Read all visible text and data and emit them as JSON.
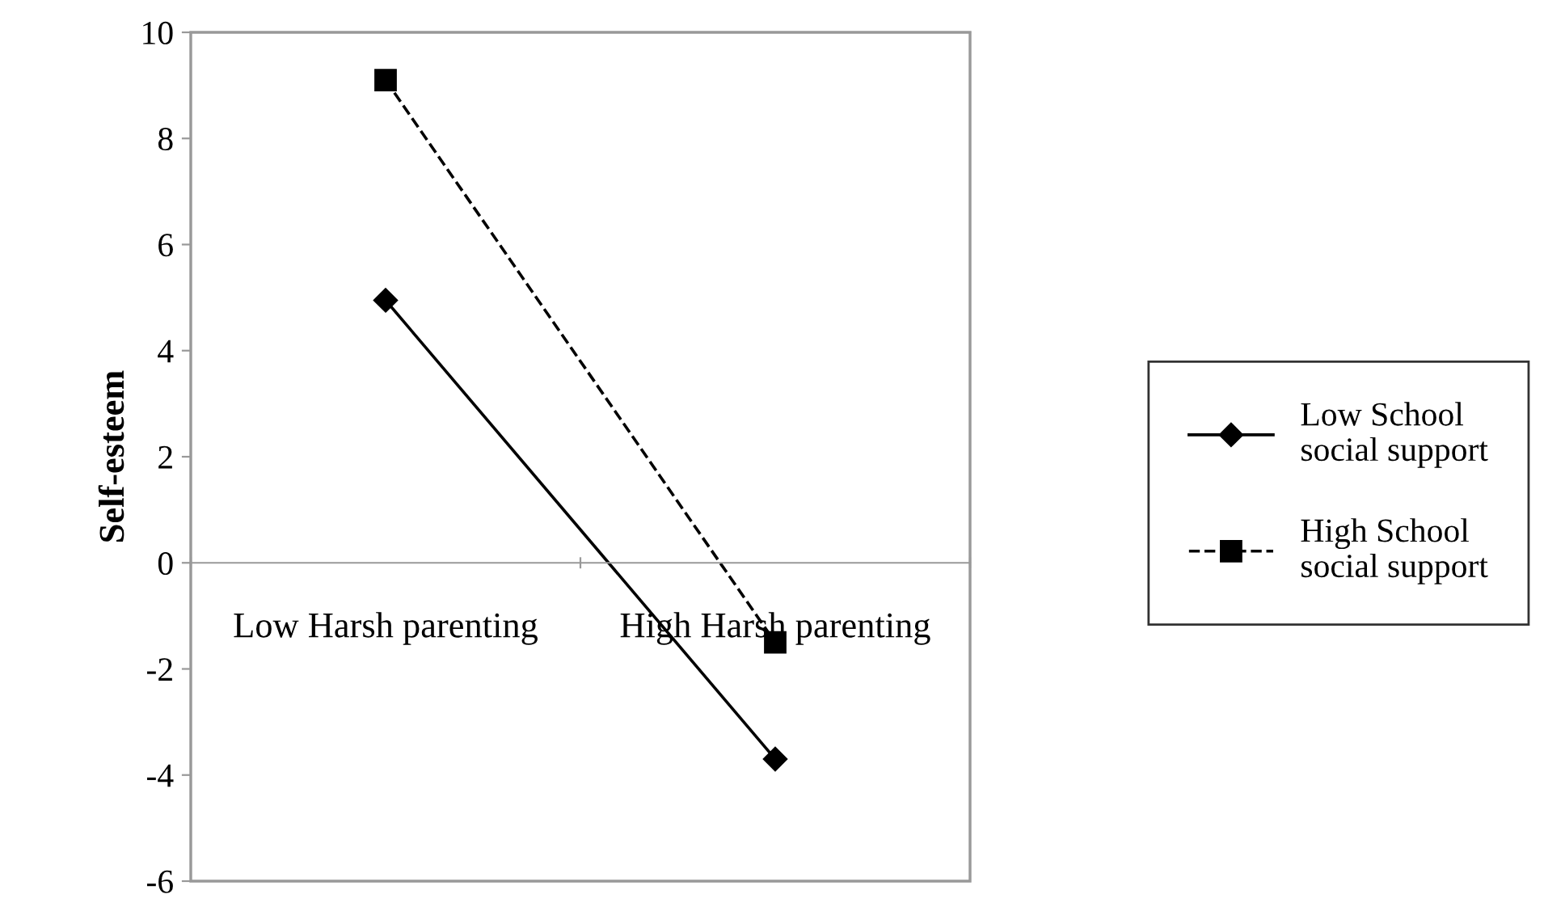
{
  "chart_data": {
    "type": "line",
    "ylabel": "Self-esteem",
    "categories": [
      "Low Harsh parenting",
      "High Harsh parenting"
    ],
    "series": [
      {
        "name": "Low School\nsocial support",
        "color": "#000000",
        "values": [
          4.95,
          -3.7
        ],
        "marker": "diamond",
        "line_style": "solid"
      },
      {
        "name": "High School\nsocial support",
        "color": "#000000",
        "values": [
          9.1,
          -1.5
        ],
        "marker": "square",
        "line_style": "dashed"
      }
    ],
    "ylim": [
      -6,
      10
    ],
    "yticks": [
      -6,
      -4,
      -2,
      0,
      2,
      4,
      6,
      8,
      10
    ],
    "grid": false,
    "legend": "right"
  }
}
